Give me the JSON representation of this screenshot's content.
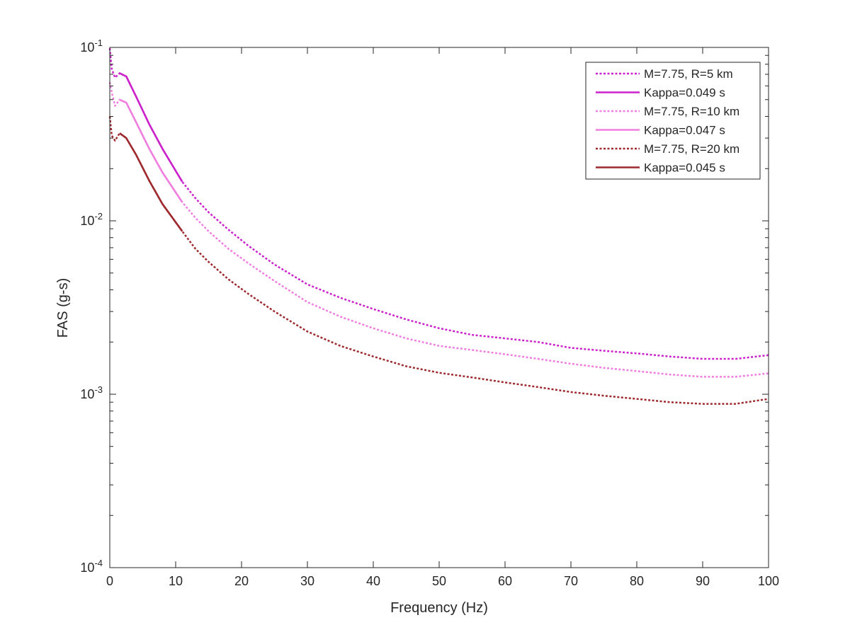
{
  "chart_data": {
    "type": "line",
    "xlabel": "Frequency (Hz)",
    "ylabel": "FAS (g-s)",
    "xlim": [
      0,
      100
    ],
    "ylim": [
      0.0001,
      0.1
    ],
    "yscale": "log",
    "grid": false,
    "legend_position": "top-right",
    "x_ticks": [
      0,
      10,
      20,
      30,
      40,
      50,
      60,
      70,
      80,
      90,
      100
    ],
    "x_tick_labels": [
      "0",
      "10",
      "20",
      "30",
      "40",
      "50",
      "60",
      "70",
      "80",
      "90",
      "100"
    ],
    "y_ticks": [
      0.0001,
      0.001,
      0.01,
      0.1
    ],
    "y_tick_labels": [
      {
        "base": "10",
        "exp": "-4"
      },
      {
        "base": "10",
        "exp": "-3"
      },
      {
        "base": "10",
        "exp": "-2"
      },
      {
        "base": "10",
        "exp": "-1"
      }
    ],
    "series": [
      {
        "name": "M=7.75, R=5 km",
        "style": "dotted",
        "color": "#CC22CC",
        "x": [
          0,
          0.3,
          0.8,
          1.5,
          2.5,
          4,
          6,
          8,
          11,
          13,
          15,
          18,
          21,
          25,
          30,
          35,
          40,
          45,
          50,
          55,
          60,
          65,
          70,
          75,
          80,
          85,
          90,
          95,
          100
        ],
        "y": [
          0.099,
          0.075,
          0.067,
          0.071,
          0.068,
          0.052,
          0.036,
          0.026,
          0.0168,
          0.0135,
          0.0112,
          0.0089,
          0.0072,
          0.0056,
          0.0043,
          0.0036,
          0.0031,
          0.0027,
          0.0024,
          0.0022,
          0.0021,
          0.002,
          0.00185,
          0.00178,
          0.00172,
          0.00165,
          0.0016,
          0.0016,
          0.00168
        ]
      },
      {
        "name": "Kappa=0.049 s",
        "style": "solid",
        "color": "#CC22CC",
        "x": [
          1.5,
          2.5,
          4,
          6,
          8,
          11
        ],
        "y": [
          0.071,
          0.068,
          0.052,
          0.036,
          0.026,
          0.0168
        ]
      },
      {
        "name": "M=7.75, R=10 km",
        "style": "dotted",
        "color": "#F07FE0",
        "x": [
          0,
          0.3,
          0.8,
          1.5,
          2.5,
          4,
          6,
          8,
          11,
          13,
          15,
          18,
          21,
          25,
          30,
          35,
          40,
          45,
          50,
          55,
          60,
          65,
          70,
          75,
          80,
          85,
          90,
          95,
          100
        ],
        "y": [
          0.063,
          0.055,
          0.046,
          0.05,
          0.048,
          0.037,
          0.026,
          0.019,
          0.0128,
          0.0104,
          0.0087,
          0.0069,
          0.0057,
          0.0045,
          0.0034,
          0.0028,
          0.0024,
          0.0021,
          0.0019,
          0.0018,
          0.0017,
          0.0016,
          0.0015,
          0.00142,
          0.00136,
          0.0013,
          0.00126,
          0.00126,
          0.00132
        ]
      },
      {
        "name": "Kappa=0.047 s",
        "style": "solid",
        "color": "#F07FE0",
        "x": [
          1.5,
          2.5,
          4,
          6,
          8,
          11
        ],
        "y": [
          0.05,
          0.048,
          0.037,
          0.026,
          0.019,
          0.0128
        ]
      },
      {
        "name": "M=7.75, R=20 km",
        "style": "dotted",
        "color": "#9E2A2F",
        "x": [
          0,
          0.3,
          0.8,
          1.5,
          2.5,
          4,
          6,
          8,
          11,
          13,
          15,
          18,
          21,
          25,
          30,
          35,
          40,
          45,
          50,
          55,
          60,
          65,
          70,
          75,
          80,
          85,
          90,
          95,
          100
        ],
        "y": [
          0.04,
          0.031,
          0.029,
          0.032,
          0.03,
          0.024,
          0.017,
          0.0125,
          0.0087,
          0.0069,
          0.0058,
          0.0046,
          0.0038,
          0.003,
          0.0023,
          0.0019,
          0.00165,
          0.00145,
          0.00133,
          0.00125,
          0.00117,
          0.0011,
          0.00103,
          0.00098,
          0.00094,
          0.0009,
          0.00088,
          0.00088,
          0.00094
        ]
      },
      {
        "name": "Kappa=0.045 s",
        "style": "solid",
        "color": "#9E2A2F",
        "x": [
          1.5,
          2.5,
          4,
          6,
          8,
          11
        ],
        "y": [
          0.032,
          0.03,
          0.024,
          0.017,
          0.0125,
          0.0087
        ]
      }
    ]
  }
}
